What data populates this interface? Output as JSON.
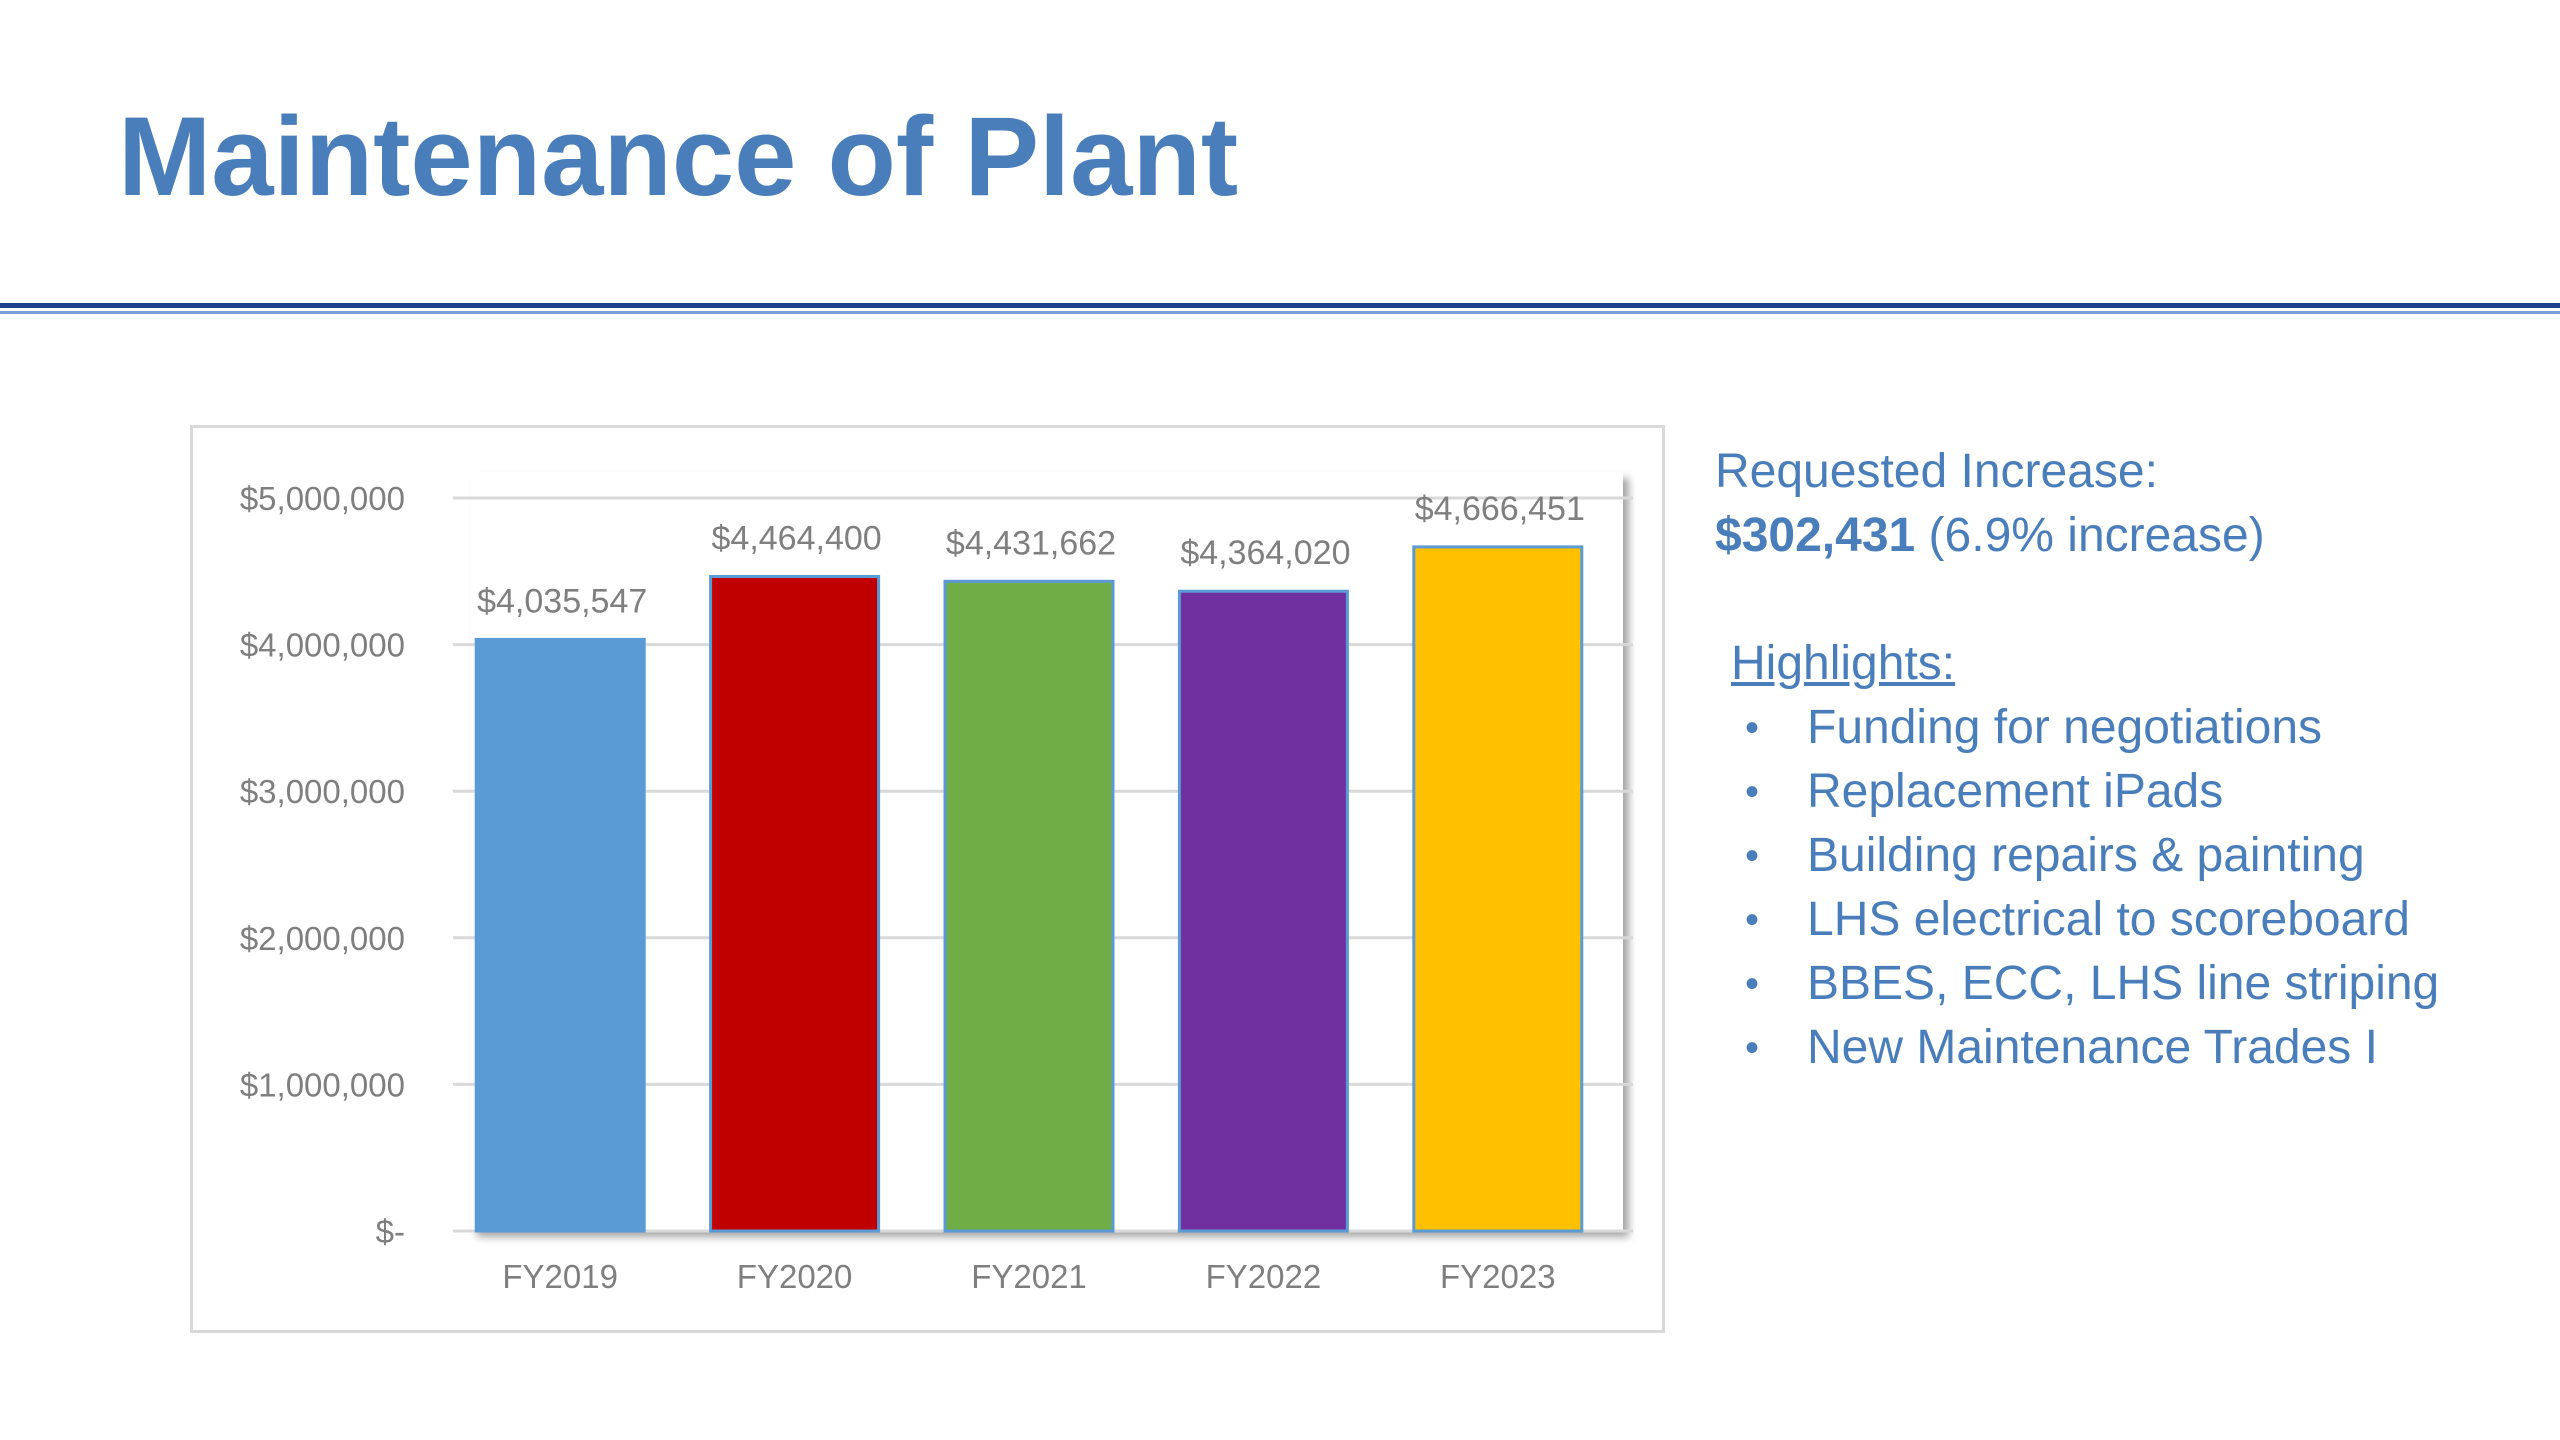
{
  "slide": {
    "title": "Maintenance of Plant"
  },
  "requested": {
    "label": "Requested Increase:",
    "amount": "$302,431",
    "detail": "(6.9% increase)"
  },
  "highlights": {
    "title": "Highlights:",
    "bullet": "•",
    "items": [
      "Funding for negotiations",
      "Replacement iPads",
      "Building repairs & painting",
      "LHS electrical to scoreboard",
      "BBES, ECC, LHS line striping",
      "New Maintenance Trades I"
    ]
  },
  "colors": {
    "title": "#4a7ebb",
    "rule": "#1f3f8f"
  },
  "chart_data": {
    "type": "bar",
    "categories": [
      "FY2019",
      "FY2020",
      "FY2021",
      "FY2022",
      "FY2023"
    ],
    "values": [
      4035547,
      4464400,
      4431662,
      4364020,
      4666451
    ],
    "data_labels": [
      "$4,035,547",
      "$4,464,400",
      "$4,431,662",
      "$4,364,020",
      "$4,666,451"
    ],
    "colors": [
      "#5b9bd5",
      "#c00000",
      "#70ad47",
      "#7030a0",
      "#ffc000"
    ],
    "ylim": [
      0,
      5000000
    ],
    "yticks": [
      0,
      1000000,
      2000000,
      3000000,
      4000000,
      5000000
    ],
    "ytick_labels": [
      "$-",
      "$1,000,000",
      "$2,000,000",
      "$3,000,000",
      "$4,000,000",
      "$5,000,000"
    ],
    "grid": true,
    "title": "",
    "xlabel": "",
    "ylabel": ""
  }
}
